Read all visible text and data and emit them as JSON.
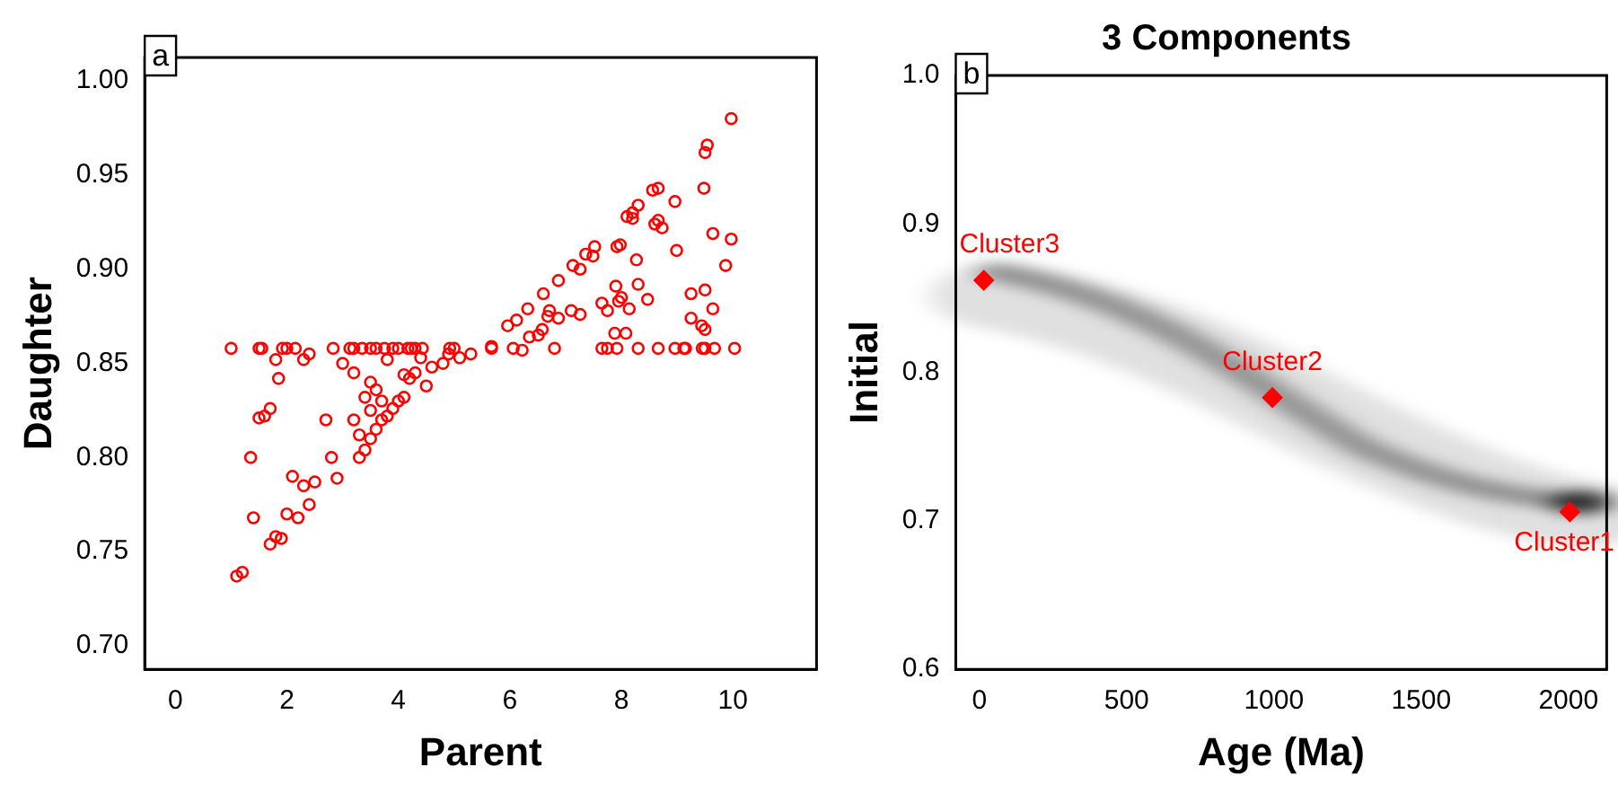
{
  "chart_data": [
    {
      "type": "scatter",
      "xlabel": "Parent",
      "ylabel": "Daughter",
      "annotations": [
        "a"
      ],
      "color": "#ff0000",
      "marker": "circle",
      "x": [
        1.0,
        1.5,
        1.55,
        1.92,
        2.0,
        2.15,
        2.83,
        3.13,
        3.2,
        3.35,
        3.5,
        3.6,
        3.75,
        3.9,
        4.0,
        4.17,
        4.23,
        4.3,
        4.43,
        4.92,
        5.0,
        5.67,
        6.8,
        7.65,
        7.75,
        7.92,
        8.3,
        8.66,
        8.96,
        9.12,
        9.15,
        9.45,
        9.5,
        9.67,
        10.03,
        1.1,
        1.2,
        1.4,
        1.35,
        1.5,
        1.6,
        1.7,
        1.8,
        1.85,
        1.7,
        1.8,
        1.9,
        2.0,
        2.1,
        2.2,
        2.3,
        2.4,
        2.5,
        2.7,
        2.9,
        2.8,
        3.0,
        2.4,
        2.3,
        3.3,
        3.4,
        3.5,
        3.6,
        3.7,
        3.8,
        3.9,
        4.0,
        4.1,
        4.2,
        4.3,
        4.1,
        3.2,
        3.5,
        3.4,
        3.6,
        3.2,
        3.5,
        3.7,
        3.3,
        3.8,
        4.4,
        4.6,
        4.8,
        4.5,
        4.9,
        5.1,
        5.3,
        9.97,
        9.54,
        9.5,
        9.48,
        9.64,
        9.97,
        9.87,
        9.5,
        9.64,
        9.25,
        9.25,
        9.44,
        9.5,
        8.96,
        8.99,
        8.66,
        8.56,
        8.3,
        8.2,
        8.1,
        8.2,
        8.66,
        8.6,
        8.73,
        8.27,
        8.3,
        7.9,
        8.47,
        8.0,
        7.95,
        7.65,
        7.75,
        8.14,
        7.88,
        8.08,
        7.52,
        7.49,
        7.36,
        7.26,
        7.13,
        6.87,
        7.92,
        7.98,
        6.6,
        7.1,
        7.26,
        6.71,
        6.68,
        6.87,
        6.32,
        6.12,
        5.96,
        6.58,
        6.51,
        6.35,
        5.67,
        6.22,
        6.06
      ],
      "values": [
        0.858,
        0.858,
        0.858,
        0.858,
        0.858,
        0.858,
        0.858,
        0.858,
        0.858,
        0.858,
        0.858,
        0.858,
        0.858,
        0.858,
        0.858,
        0.858,
        0.858,
        0.858,
        0.858,
        0.858,
        0.858,
        0.858,
        0.858,
        0.858,
        0.858,
        0.858,
        0.858,
        0.858,
        0.858,
        0.858,
        0.858,
        0.858,
        0.858,
        0.858,
        0.858,
        0.737,
        0.739,
        0.768,
        0.8,
        0.821,
        0.822,
        0.826,
        0.852,
        0.842,
        0.754,
        0.758,
        0.757,
        0.77,
        0.79,
        0.768,
        0.785,
        0.775,
        0.787,
        0.82,
        0.789,
        0.8,
        0.85,
        0.855,
        0.852,
        0.8,
        0.804,
        0.81,
        0.815,
        0.82,
        0.822,
        0.826,
        0.83,
        0.832,
        0.842,
        0.845,
        0.844,
        0.845,
        0.84,
        0.832,
        0.836,
        0.82,
        0.825,
        0.83,
        0.812,
        0.852,
        0.853,
        0.848,
        0.85,
        0.838,
        0.855,
        0.853,
        0.855,
        0.98,
        0.966,
        0.962,
        0.943,
        0.919,
        0.916,
        0.902,
        0.889,
        0.879,
        0.887,
        0.874,
        0.87,
        0.868,
        0.936,
        0.91,
        0.943,
        0.942,
        0.934,
        0.93,
        0.928,
        0.927,
        0.926,
        0.924,
        0.922,
        0.905,
        0.892,
        0.891,
        0.884,
        0.885,
        0.883,
        0.882,
        0.878,
        0.879,
        0.866,
        0.866,
        0.912,
        0.907,
        0.908,
        0.9,
        0.902,
        0.894,
        0.912,
        0.913,
        0.887,
        0.878,
        0.876,
        0.878,
        0.875,
        0.874,
        0.879,
        0.873,
        0.87,
        0.868,
        0.865,
        0.864,
        0.859,
        0.857,
        0.858
      ],
      "xlim": [
        -0.55,
        11.5
      ],
      "ylim": [
        0.6875,
        1.0125
      ],
      "xticks": [
        0,
        2,
        4,
        6,
        8,
        10
      ],
      "yticks": [
        {
          "value": 0.7,
          "label": "0.70"
        },
        {
          "value": 0.75,
          "label": "0.75"
        },
        {
          "value": 0.8,
          "label": "0.80"
        },
        {
          "value": 0.85,
          "label": "0.85"
        },
        {
          "value": 0.9,
          "label": "0.90"
        },
        {
          "value": 0.95,
          "label": "0.95"
        },
        {
          "value": 1.0,
          "label": "1.00"
        }
      ]
    },
    {
      "type": "scatter",
      "title": "3 Components",
      "xlabel": "Age (Ma)",
      "ylabel": "Initial",
      "color": "#ff0000",
      "marker": "diamond",
      "annotations": [
        "b",
        {
          "text": "Cluster3",
          "x": 15,
          "y": 0.862
        },
        {
          "text": "Cluster2",
          "x": 995,
          "y": 0.783
        },
        {
          "text": "Cluster1",
          "x": 2005,
          "y": 0.706
        }
      ],
      "x": [
        15,
        995,
        2005
      ],
      "values": [
        0.862,
        0.783,
        0.706
      ],
      "xlim": [
        -80,
        2130
      ],
      "ylim": [
        0.6,
        1.0
      ],
      "xticks": [
        0,
        500,
        1000,
        1500,
        2000
      ],
      "yticks": [
        {
          "value": 0.6,
          "label": "0.6"
        },
        {
          "value": 0.7,
          "label": "0.7"
        },
        {
          "value": 0.8,
          "label": "0.8"
        },
        {
          "value": 0.9,
          "label": "0.9"
        },
        {
          "value": 1.0,
          "label": "1.0"
        }
      ]
    }
  ]
}
